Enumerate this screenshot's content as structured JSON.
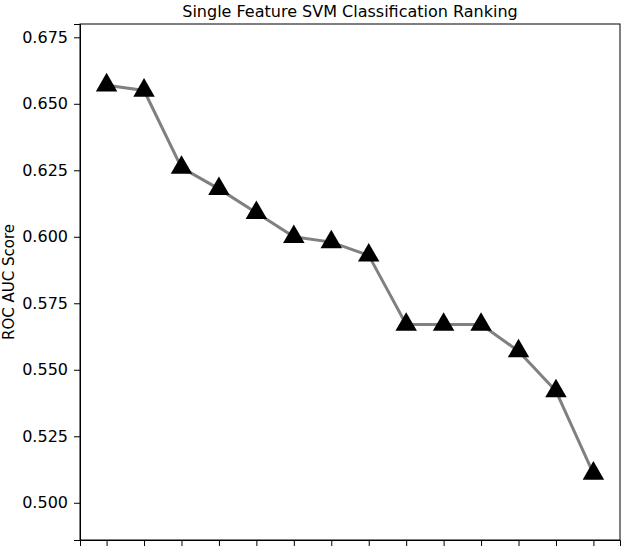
{
  "chart_data": {
    "type": "line",
    "title": "Single Feature SVM Classification Ranking",
    "y_label": "ROC AUC Score",
    "categories": [
      null,
      null,
      null,
      null,
      null,
      null,
      null,
      null,
      null,
      null,
      null,
      null,
      null,
      null
    ],
    "values": [
      0.657,
      0.655,
      0.626,
      0.618,
      0.609,
      0.6,
      0.598,
      0.593,
      0.567,
      0.567,
      0.567,
      0.557,
      0.542,
      0.511
    ],
    "color": "#808080",
    "marker": "triangle",
    "line_style": "solid",
    "ylim": [
      0.486,
      0.68
    ],
    "yticks": [
      {
        "value": 0.5,
        "label": "0.500"
      },
      0.525,
      {
        "value": 0.55,
        "label": "0.550"
      },
      0.575,
      {
        "value": 0.6,
        "label": "0.600"
      },
      0.625,
      {
        "value": 0.65,
        "label": "0.650"
      },
      0.675
    ],
    "grid": false,
    "tick_labels": "y"
  }
}
